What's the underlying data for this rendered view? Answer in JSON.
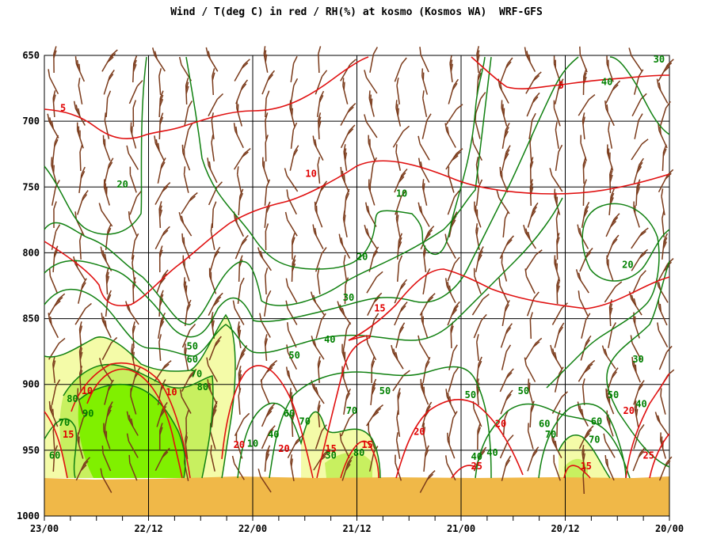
{
  "chart_data": {
    "type": "line",
    "title": "Wind / T(deg C) in red / RH(%) at kosmo (Kosmos WA)  WRF-GFS",
    "y_axis": {
      "ticks": [
        650,
        700,
        750,
        800,
        850,
        900,
        950,
        1000
      ],
      "range": [
        650,
        1000
      ]
    },
    "x_axis": {
      "ticks": [
        "23/00",
        "22/12",
        "22/00",
        "21/12",
        "21/00",
        "20/12",
        "20/00"
      ]
    },
    "grid": true,
    "series": [
      {
        "name": "T(deg C)",
        "color": "#e00000",
        "contour_labels": [
          {
            "text": "5",
            "x": 0.18,
            "y": 690
          },
          {
            "text": "5",
            "x": 4.96,
            "y": 673
          },
          {
            "text": "10",
            "x": 2.56,
            "y": 740
          },
          {
            "text": "15",
            "x": 3.22,
            "y": 842
          },
          {
            "text": "10",
            "x": 0.41,
            "y": 905
          },
          {
            "text": "10",
            "x": 1.22,
            "y": 906
          },
          {
            "text": "15",
            "x": 0.23,
            "y": 938
          },
          {
            "text": "20",
            "x": 1.87,
            "y": 946
          },
          {
            "text": "20",
            "x": 2.3,
            "y": 949
          },
          {
            "text": "20",
            "x": 3.6,
            "y": 936
          },
          {
            "text": "20",
            "x": 4.38,
            "y": 930
          },
          {
            "text": "15",
            "x": 2.75,
            "y": 949
          },
          {
            "text": "15",
            "x": 3.1,
            "y": 946
          },
          {
            "text": "20",
            "x": 5.61,
            "y": 920
          },
          {
            "text": "25",
            "x": 4.15,
            "y": 962
          },
          {
            "text": "15",
            "x": 5.2,
            "y": 962
          },
          {
            "text": "25",
            "x": 5.8,
            "y": 954
          }
        ]
      },
      {
        "name": "RH(%)",
        "color": "#008000",
        "contour_labels": [
          {
            "text": "30",
            "x": 5.9,
            "y": 653
          },
          {
            "text": "40",
            "x": 5.4,
            "y": 670
          },
          {
            "text": "20",
            "x": 0.75,
            "y": 748
          },
          {
            "text": "10",
            "x": 3.43,
            "y": 755
          },
          {
            "text": "20",
            "x": 3.05,
            "y": 803
          },
          {
            "text": "20",
            "x": 5.6,
            "y": 809
          },
          {
            "text": "30",
            "x": 2.92,
            "y": 834
          },
          {
            "text": "30",
            "x": 5.7,
            "y": 881
          },
          {
            "text": "40",
            "x": 2.74,
            "y": 866
          },
          {
            "text": "50",
            "x": 1.42,
            "y": 871
          },
          {
            "text": "60",
            "x": 1.42,
            "y": 881
          },
          {
            "text": "70",
            "x": 1.46,
            "y": 892
          },
          {
            "text": "80",
            "x": 1.52,
            "y": 902
          },
          {
            "text": "50",
            "x": 2.4,
            "y": 878
          },
          {
            "text": "50",
            "x": 3.27,
            "y": 905
          },
          {
            "text": "50",
            "x": 4.09,
            "y": 908
          },
          {
            "text": "50",
            "x": 4.6,
            "y": 905
          },
          {
            "text": "50",
            "x": 5.46,
            "y": 908
          },
          {
            "text": "80",
            "x": 0.27,
            "y": 911
          },
          {
            "text": "90",
            "x": 0.42,
            "y": 922
          },
          {
            "text": "70",
            "x": 0.19,
            "y": 929
          },
          {
            "text": "60",
            "x": 0.1,
            "y": 954
          },
          {
            "text": "40",
            "x": 2.2,
            "y": 938
          },
          {
            "text": "10",
            "x": 2.0,
            "y": 945
          },
          {
            "text": "60",
            "x": 2.35,
            "y": 922
          },
          {
            "text": "70",
            "x": 2.5,
            "y": 928
          },
          {
            "text": "70",
            "x": 2.95,
            "y": 920
          },
          {
            "text": "30",
            "x": 2.75,
            "y": 954
          },
          {
            "text": "80",
            "x": 3.02,
            "y": 952
          },
          {
            "text": "40",
            "x": 4.15,
            "y": 955
          },
          {
            "text": "40",
            "x": 4.3,
            "y": 952
          },
          {
            "text": "60",
            "x": 4.8,
            "y": 930
          },
          {
            "text": "70",
            "x": 4.86,
            "y": 938
          },
          {
            "text": "60",
            "x": 5.3,
            "y": 928
          },
          {
            "text": "70",
            "x": 5.28,
            "y": 942
          },
          {
            "text": "40",
            "x": 5.73,
            "y": 915
          }
        ]
      }
    ]
  }
}
